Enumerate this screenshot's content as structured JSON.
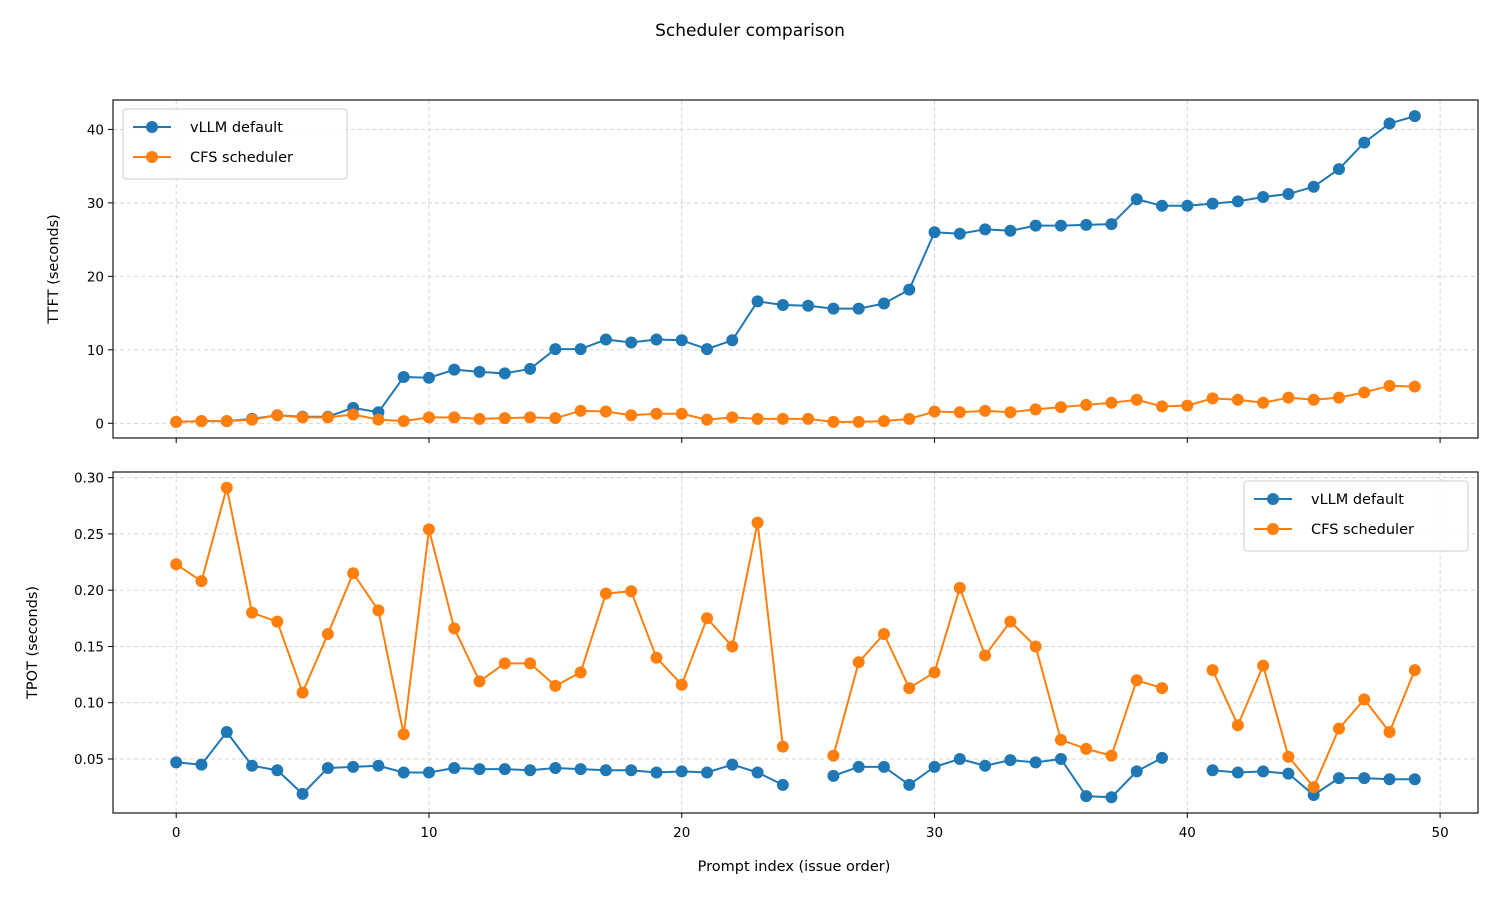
{
  "figure": {
    "title": "Scheduler comparison",
    "xlabel": "Prompt index (issue order)",
    "colors": {
      "vllm": "#1f77b4",
      "cfs": "#ff7f0e"
    }
  },
  "chart_data": [
    {
      "type": "line",
      "ylabel": "TTFT (seconds)",
      "xlim": [
        -2.5,
        51.5
      ],
      "ylim": [
        -2,
        44
      ],
      "xticks": [
        0,
        10,
        20,
        30,
        40,
        50
      ],
      "yticks": [
        0,
        10,
        20,
        30,
        40
      ],
      "grid": true,
      "legend_position": "top-left",
      "x": [
        0,
        1,
        2,
        3,
        4,
        5,
        6,
        7,
        8,
        9,
        10,
        11,
        12,
        13,
        14,
        15,
        16,
        17,
        18,
        19,
        20,
        21,
        22,
        23,
        24,
        25,
        26,
        27,
        28,
        29,
        30,
        31,
        32,
        33,
        34,
        35,
        36,
        37,
        38,
        39,
        40,
        41,
        42,
        43,
        44,
        45,
        46,
        47,
        48,
        49
      ],
      "series": [
        {
          "name": "vLLM default",
          "color": "#1f77b4",
          "values": [
            0.2,
            0.3,
            0.3,
            0.6,
            1.1,
            0.9,
            0.9,
            2.1,
            1.5,
            6.3,
            6.2,
            7.3,
            7.0,
            6.8,
            7.4,
            10.1,
            10.1,
            11.4,
            11.0,
            11.4,
            11.3,
            10.1,
            11.3,
            16.6,
            16.1,
            16.0,
            15.6,
            15.6,
            16.3,
            18.2,
            26.0,
            25.8,
            26.4,
            26.2,
            26.9,
            26.9,
            27.0,
            27.1,
            30.5,
            29.6,
            29.6,
            29.9,
            30.2,
            30.8,
            31.2,
            32.2,
            34.6,
            38.2,
            40.8,
            41.8
          ]
        },
        {
          "name": "CFS scheduler",
          "color": "#ff7f0e",
          "values": [
            0.2,
            0.3,
            0.3,
            0.5,
            1.1,
            0.8,
            0.8,
            1.2,
            0.5,
            0.3,
            0.8,
            0.8,
            0.6,
            0.7,
            0.8,
            0.7,
            1.7,
            1.6,
            1.1,
            1.3,
            1.3,
            0.5,
            0.8,
            0.6,
            0.6,
            0.6,
            0.2,
            0.2,
            0.3,
            0.6,
            1.6,
            1.5,
            1.7,
            1.5,
            1.9,
            2.2,
            2.5,
            2.8,
            3.2,
            2.3,
            2.4,
            3.4,
            3.2,
            2.8,
            3.5,
            3.2,
            3.5,
            4.2,
            5.1,
            5.0
          ]
        }
      ]
    },
    {
      "type": "line",
      "ylabel": "TPOT (seconds)",
      "xlim": [
        -2.5,
        51.5
      ],
      "ylim": [
        0.002,
        0.305
      ],
      "xticks": [
        0,
        10,
        20,
        30,
        40,
        50
      ],
      "yticks": [
        0.05,
        0.1,
        0.15,
        0.2,
        0.25,
        0.3
      ],
      "ytick_labels": [
        "0.05",
        "0.10",
        "0.15",
        "0.20",
        "0.25",
        "0.30"
      ],
      "grid": true,
      "legend_position": "top-right",
      "x": [
        0,
        1,
        2,
        3,
        4,
        5,
        6,
        7,
        8,
        9,
        10,
        11,
        12,
        13,
        14,
        15,
        16,
        17,
        18,
        19,
        20,
        21,
        22,
        23,
        24,
        25,
        26,
        27,
        28,
        29,
        30,
        31,
        32,
        33,
        34,
        35,
        36,
        37,
        38,
        39,
        40,
        41,
        42,
        43,
        44,
        45,
        46,
        47,
        48,
        49
      ],
      "series": [
        {
          "name": "vLLM default",
          "color": "#1f77b4",
          "values": [
            0.047,
            0.045,
            0.074,
            0.044,
            0.04,
            0.019,
            0.042,
            0.043,
            0.044,
            0.038,
            0.038,
            0.042,
            0.041,
            0.041,
            0.04,
            0.042,
            0.041,
            0.04,
            0.04,
            0.038,
            0.039,
            0.038,
            0.045,
            0.038,
            0.027,
            null,
            0.035,
            0.043,
            0.043,
            0.027,
            0.043,
            0.05,
            0.044,
            0.049,
            0.047,
            0.05,
            0.017,
            0.016,
            0.039,
            0.051,
            null,
            0.04,
            0.038,
            0.039,
            0.037,
            0.018,
            0.033,
            0.033,
            0.032,
            0.032
          ]
        },
        {
          "name": "CFS scheduler",
          "color": "#ff7f0e",
          "values": [
            0.223,
            0.208,
            0.291,
            0.18,
            0.172,
            0.109,
            0.161,
            0.215,
            0.182,
            0.072,
            0.254,
            0.166,
            0.119,
            0.135,
            0.135,
            0.115,
            0.127,
            0.197,
            0.199,
            0.14,
            0.116,
            0.175,
            0.15,
            0.26,
            0.061,
            null,
            0.053,
            0.136,
            0.161,
            0.113,
            0.127,
            0.202,
            0.142,
            0.172,
            0.15,
            0.067,
            0.059,
            0.053,
            0.12,
            0.113,
            null,
            0.129,
            0.08,
            0.133,
            0.052,
            0.025,
            0.077,
            0.103,
            0.074,
            0.129
          ]
        }
      ]
    }
  ]
}
